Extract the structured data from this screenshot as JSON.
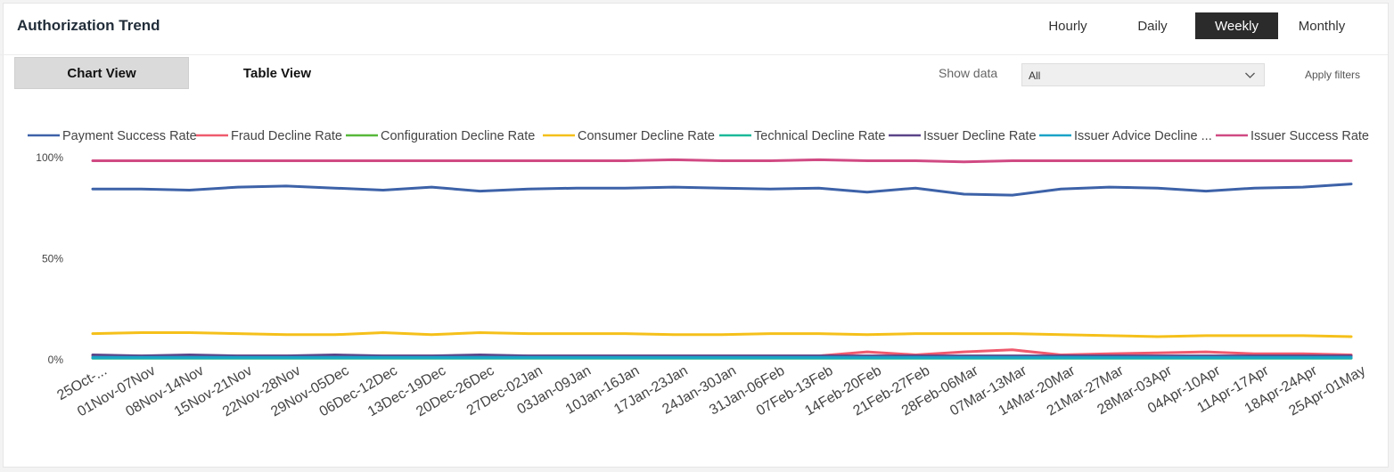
{
  "header": {
    "title": "Authorization Trend"
  },
  "granularity": [
    {
      "label": "Hourly",
      "active": false
    },
    {
      "label": "Daily",
      "active": false
    },
    {
      "label": "Weekly",
      "active": true
    },
    {
      "label": "Monthly",
      "active": false
    }
  ],
  "view_tabs": [
    {
      "label": "Chart View",
      "active": true
    },
    {
      "label": "Table View",
      "active": false
    }
  ],
  "filters": {
    "show_label": "Show data",
    "selected": "All",
    "apply_label": "Apply filters"
  },
  "chart_data": {
    "type": "line",
    "title": "",
    "xlabel": "",
    "ylabel": "",
    "ylim": [
      0,
      100
    ],
    "y_ticks": [
      0,
      50,
      100
    ],
    "y_tick_labels": [
      "0%",
      "50%",
      "100%"
    ],
    "legend_position": "top",
    "grid": false,
    "categories": [
      "25Oct-...",
      "01Nov-07Nov",
      "08Nov-14Nov",
      "15Nov-21Nov",
      "22Nov-28Nov",
      "29Nov-05Dec",
      "06Dec-12Dec",
      "13Dec-19Dec",
      "20Dec-26Dec",
      "27Dec-02Jan",
      "03Jan-09Jan",
      "10Jan-16Jan",
      "17Jan-23Jan",
      "24Jan-30Jan",
      "31Jan-06Feb",
      "07Feb-13Feb",
      "14Feb-20Feb",
      "21Feb-27Feb",
      "28Feb-06Mar",
      "07Mar-13Mar",
      "14Mar-20Mar",
      "21Mar-27Mar",
      "28Mar-03Apr",
      "04Apr-10Apr",
      "11Apr-17Apr",
      "18Apr-24Apr",
      "25Apr-01May"
    ],
    "series": [
      {
        "name": "Payment Success Rate",
        "color": "#3d62a8",
        "values": [
          84,
          84,
          83.5,
          85,
          85.5,
          84.5,
          83.5,
          85,
          83,
          84,
          84.5,
          84.5,
          85,
          84.5,
          84,
          84.5,
          82.5,
          84.5,
          81.5,
          81,
          84,
          85,
          84.5,
          83,
          84.5,
          85,
          86.5
        ]
      },
      {
        "name": "Fraud Decline Rate",
        "color": "#ef5a6e",
        "values": [
          1.5,
          1.5,
          1.5,
          1.5,
          1.5,
          1.5,
          1.5,
          1.5,
          1.5,
          1.5,
          1.5,
          1.5,
          1.5,
          1.5,
          1.5,
          1.5,
          3.5,
          2,
          3.5,
          4.5,
          2,
          2.5,
          3,
          3.5,
          2.5,
          2.5,
          2
        ]
      },
      {
        "name": "Configuration Decline Rate",
        "color": "#57b83a",
        "values": [
          0.5,
          0.5,
          0.5,
          0.5,
          0.5,
          0.5,
          0.5,
          0.5,
          0.5,
          0.5,
          0.5,
          0.5,
          0.5,
          0.5,
          0.5,
          0.5,
          0.5,
          0.5,
          0.5,
          0.5,
          0.5,
          0.5,
          0.5,
          0.5,
          0.5,
          0.5,
          0.5
        ]
      },
      {
        "name": "Consumer Decline Rate",
        "color": "#f5c01a",
        "values": [
          12.5,
          13,
          13,
          12.5,
          12,
          12,
          13,
          12,
          13,
          12.5,
          12.5,
          12.5,
          12,
          12,
          12.5,
          12.5,
          12,
          12.5,
          12.5,
          12.5,
          12,
          11.5,
          11,
          11.5,
          11.5,
          11.5,
          11
        ]
      },
      {
        "name": "Technical Decline Rate",
        "color": "#1cb99a",
        "values": [
          0.3,
          0.3,
          0.3,
          0.3,
          0.3,
          0.3,
          0.3,
          0.3,
          0.3,
          0.3,
          0.3,
          0.3,
          0.3,
          0.3,
          0.3,
          0.3,
          0.3,
          0.3,
          0.3,
          0.3,
          0.3,
          0.3,
          0.3,
          0.3,
          0.3,
          0.3,
          0.3
        ]
      },
      {
        "name": "Issuer Decline Rate",
        "color": "#5a4489",
        "values": [
          2,
          1.5,
          2,
          1.5,
          1.5,
          2,
          1.5,
          1.5,
          2,
          1.5,
          1.5,
          1.5,
          1.5,
          1.5,
          1.5,
          1.5,
          1.5,
          1.5,
          1.5,
          1.5,
          1.5,
          1.5,
          1.5,
          1.5,
          1.5,
          1.5,
          1.5
        ]
      },
      {
        "name": "Issuer Advice Decline ...",
        "color": "#1aa3c8",
        "values": [
          0.8,
          0.8,
          0.8,
          0.8,
          0.8,
          0.8,
          0.8,
          0.8,
          0.8,
          0.8,
          0.8,
          0.8,
          0.8,
          0.8,
          0.8,
          0.8,
          0.8,
          0.8,
          0.8,
          0.8,
          0.8,
          0.8,
          0.8,
          0.8,
          0.8,
          0.8,
          0.8
        ]
      },
      {
        "name": "Issuer Success Rate",
        "color": "#d04a83",
        "values": [
          98,
          98,
          98,
          98,
          98,
          98,
          98,
          98,
          98,
          98,
          98,
          98,
          98.5,
          98,
          98,
          98.5,
          98,
          98,
          97.5,
          98,
          98,
          98,
          98,
          98,
          98,
          98,
          98
        ]
      }
    ]
  }
}
